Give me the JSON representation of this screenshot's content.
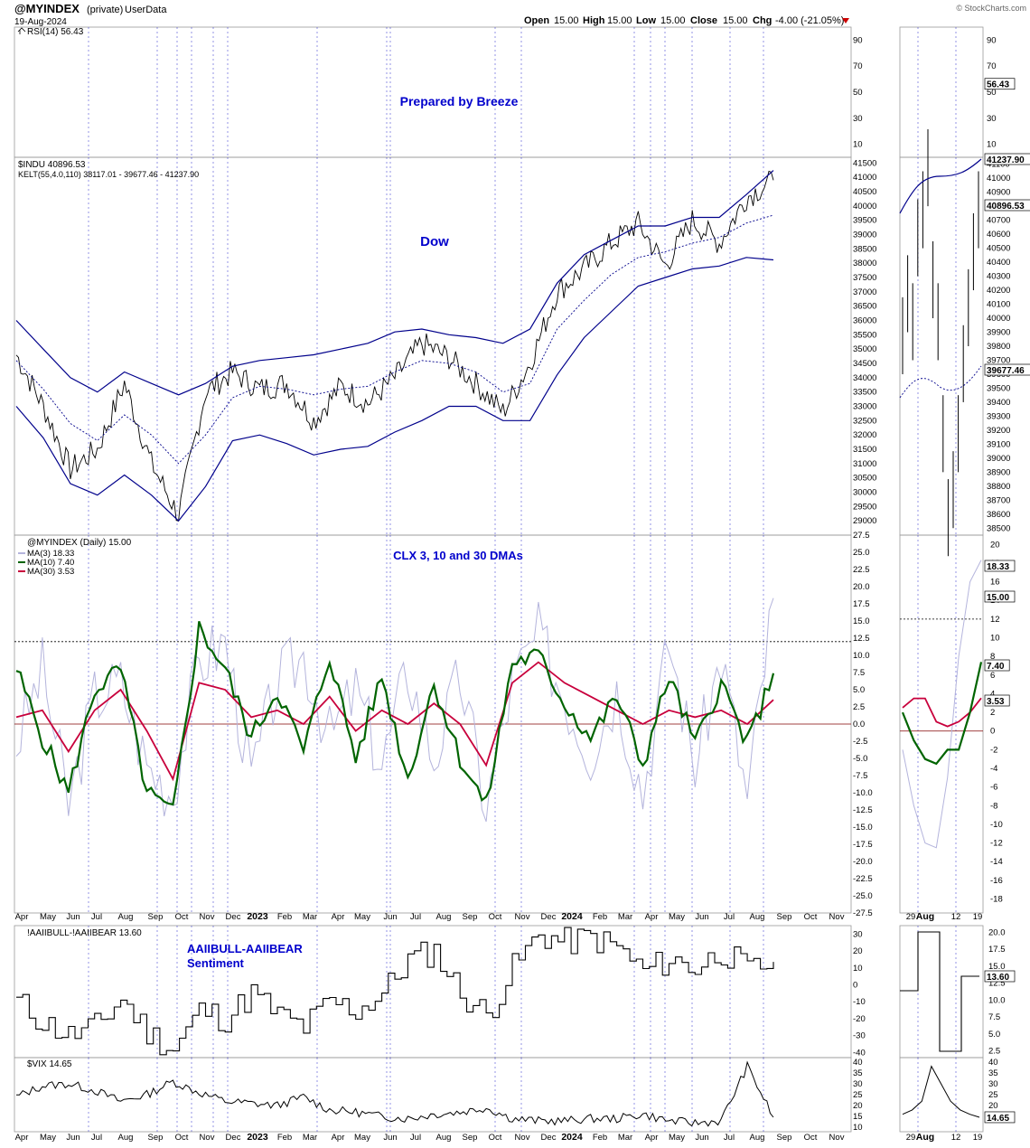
{
  "header": {
    "symbol": "@MYINDEX",
    "privacy": "(private)",
    "source": "UserData",
    "date": "19-Aug-2024",
    "watermark": "© StockCharts.com",
    "ohlc": {
      "open_label": "Open",
      "open": "15.00",
      "high_label": "High",
      "high": "15.00",
      "low_label": "Low",
      "low": "15.00",
      "close_label": "Close",
      "close": "15.00",
      "chg_label": "Chg",
      "chg": "-4.00 (-21.05%)",
      "chg_icon": "triangle-down-icon"
    }
  },
  "colors": {
    "price": "#000000",
    "keltner": "#00008b",
    "ma3": "#b4b4dc",
    "ma10": "#006400",
    "ma30": "#c8003c",
    "zero_line": "#800000",
    "grid": "#0000c0",
    "annotation": "#0000cc"
  },
  "x_months": [
    "Apr",
    "May",
    "Jun",
    "Jul",
    "Aug",
    "Sep",
    "Oct",
    "Nov",
    "Dec",
    "2023",
    "Feb",
    "Mar",
    "Apr",
    "May",
    "Jun",
    "Jul",
    "Aug",
    "Sep",
    "Oct",
    "Nov",
    "Dec",
    "2024",
    "Feb",
    "Mar",
    "Apr",
    "May",
    "Jun",
    "Jul",
    "Aug",
    "Sep",
    "Oct",
    "Nov"
  ],
  "zoom_months": [
    "29",
    "Aug",
    "12",
    "19"
  ],
  "chart_data": [
    {
      "type": "line",
      "title": "RSI(14) 56.43",
      "annotation": "Prepared by Breeze",
      "y_ticks": [
        90,
        70,
        50,
        30,
        10
      ],
      "ylim": [
        0,
        100
      ],
      "series": [
        {
          "name": "RSI(14)",
          "last": 56.43
        }
      ],
      "last_label": "56.43"
    },
    {
      "type": "line",
      "title": "$INDU 40896.53",
      "subtitle": "KELT(55,4.0,110) 38117.01 - 39677.46 - 41237.90",
      "annotation": "Dow",
      "ylim": [
        28500,
        41700
      ],
      "y_ticks": [
        41500,
        41000,
        40500,
        40000,
        39500,
        39000,
        38500,
        38000,
        37500,
        37000,
        36500,
        36000,
        35500,
        35000,
        34500,
        34000,
        33500,
        33000,
        32500,
        32000,
        31500,
        31000,
        30500,
        30000,
        29500,
        29000
      ],
      "zoom_y_ticks": [
        41100,
        41000,
        40900,
        40800,
        40700,
        40600,
        40500,
        40400,
        40300,
        40200,
        40100,
        40000,
        39900,
        39800,
        39700,
        39600,
        39500,
        39400,
        39300,
        39200,
        39100,
        39000,
        38900,
        38800,
        38700,
        38600,
        38500
      ],
      "dates": [
        "2022-04",
        "2022-05",
        "2022-06",
        "2022-07",
        "2022-08",
        "2022-09",
        "2022-10",
        "2022-11",
        "2022-12",
        "2023-01",
        "2023-02",
        "2023-03",
        "2023-04",
        "2023-05",
        "2023-06",
        "2023-07",
        "2023-08",
        "2023-09",
        "2023-10",
        "2023-11",
        "2023-12",
        "2024-01",
        "2024-02",
        "2024-03",
        "2024-04",
        "2024-05",
        "2024-06",
        "2024-07",
        "2024-08"
      ],
      "series": [
        {
          "name": "$INDU",
          "values": [
            34800,
            33000,
            30800,
            31500,
            33800,
            31000,
            29200,
            33500,
            34200,
            33600,
            33800,
            32500,
            33700,
            33100,
            34000,
            35200,
            34700,
            33800,
            32800,
            34500,
            37000,
            37800,
            38700,
            39400,
            37900,
            39500,
            38700,
            40300,
            40896.53
          ]
        },
        {
          "name": "KELT upper",
          "values": [
            36000,
            35000,
            34000,
            33500,
            34200,
            33800,
            33400,
            33800,
            34400,
            34600,
            34700,
            34800,
            35000,
            35200,
            35600,
            35700,
            35500,
            35400,
            35200,
            35700,
            37300,
            38300,
            38800,
            39300,
            39300,
            39600,
            39600,
            40400,
            41237.9
          ]
        },
        {
          "name": "KELT middle",
          "values": [
            34600,
            33600,
            32400,
            31800,
            32700,
            32000,
            31000,
            32000,
            33300,
            33700,
            33600,
            33400,
            33600,
            33700,
            34200,
            34600,
            34500,
            34200,
            33500,
            33800,
            35700,
            36700,
            37600,
            38200,
            38400,
            38700,
            38900,
            39400,
            39677.46
          ]
        },
        {
          "name": "KELT lower",
          "values": [
            33000,
            31900,
            30300,
            29900,
            30600,
            29900,
            29000,
            30200,
            31800,
            32000,
            31700,
            31300,
            31500,
            31600,
            32100,
            32500,
            33000,
            33000,
            32500,
            32500,
            34100,
            35400,
            36300,
            37200,
            37500,
            37800,
            37900,
            38200,
            38117.01
          ]
        }
      ],
      "last_labels": [
        "41237.90",
        "40896.53",
        "39677.46"
      ]
    },
    {
      "type": "line",
      "title": "@MYINDEX (Daily) 15.00",
      "annotation": "CLX 3, 10 and 30 DMAs",
      "ylim": [
        -27.5,
        27.5
      ],
      "y_ticks": [
        27.5,
        25.0,
        22.5,
        20.0,
        17.5,
        15.0,
        12.5,
        10.0,
        7.5,
        5.0,
        2.5,
        0.0,
        -2.5,
        -5.0,
        -7.5,
        -10.0,
        -12.5,
        -15.0,
        -17.5,
        -20.0,
        -22.5,
        -25.0,
        -27.5
      ],
      "zoom_y_ticks": [
        20,
        18,
        16,
        14,
        12,
        10,
        8,
        6,
        4,
        2,
        0,
        -2,
        -4,
        -6,
        -8,
        -10,
        -12,
        -14,
        -16,
        -18
      ],
      "reference_lines": {
        "dotted": 12,
        "zero": 0
      },
      "series": [
        {
          "name": "MA(3) 18.33",
          "values": [
            -3,
            8,
            -12,
            4,
            6,
            -6,
            -10,
            9,
            12,
            -8,
            6,
            10,
            -2,
            5,
            -6,
            8,
            -5,
            7,
            -12,
            6,
            13,
            4,
            -4,
            5,
            -10,
            12,
            -6,
            10,
            -11,
            18.33
          ]
        },
        {
          "name": "MA(10) 7.40",
          "values": [
            8,
            -2,
            -10,
            5,
            8,
            -10,
            -13,
            14,
            8,
            -2,
            5,
            -4,
            10,
            -5,
            7,
            -8,
            6,
            -5,
            -12,
            9,
            10,
            3,
            -2,
            4,
            -6,
            7,
            -3,
            6,
            -3,
            7.4
          ]
        },
        {
          "name": "MA(30) 3.53",
          "values": [
            1,
            2,
            -4,
            2,
            5,
            -1,
            -8,
            6,
            5,
            1,
            2,
            0,
            4,
            -1,
            2,
            0,
            3,
            0,
            -6,
            6,
            9,
            6,
            4,
            2,
            0,
            2,
            1,
            2,
            0,
            3.53
          ]
        }
      ],
      "last_labels": [
        "18.33",
        "15.00",
        "7.40",
        "3.53"
      ]
    },
    {
      "type": "line",
      "title": "!AAIIBULL-!AAIIBEAR 13.60",
      "annotation_line1": "AAIIBULL-AAIIBEAR",
      "annotation_line2": "Sentiment",
      "ylim": [
        -43,
        35
      ],
      "y_ticks": [
        30,
        20,
        10,
        0,
        -10,
        -20,
        -30,
        -40
      ],
      "zoom_y_ticks": [
        "20.0",
        "17.5",
        "15.0",
        "12.5",
        "10.0",
        "7.5",
        "5.0",
        "2.5"
      ],
      "series": [
        {
          "name": "!AAIIBULL-!AAIIBEAR",
          "values": [
            -10,
            -22,
            -30,
            -25,
            -8,
            -28,
            -38,
            -15,
            -20,
            -5,
            -18,
            -25,
            -10,
            -15,
            -5,
            15,
            20,
            -5,
            -18,
            10,
            30,
            25,
            28,
            22,
            8,
            15,
            10,
            20,
            8,
            13.6
          ]
        }
      ],
      "last_label": "13.60"
    },
    {
      "type": "line",
      "title": "$VIX 14.65",
      "ylim": [
        8,
        42
      ],
      "y_ticks": [
        40,
        35,
        30,
        25,
        20,
        15,
        10
      ],
      "zoom_y_ticks": [
        40,
        35,
        30,
        25,
        20,
        15
      ],
      "series": [
        {
          "name": "$VIX",
          "values": [
            24,
            29,
            30,
            27,
            22,
            25,
            31,
            26,
            22,
            21,
            20,
            24,
            18,
            17,
            15,
            14,
            16,
            17,
            19,
            14,
            13,
            13,
            14,
            14,
            16,
            13,
            12,
            13,
            38,
            14.65
          ]
        }
      ],
      "last_label": "14.65"
    }
  ]
}
